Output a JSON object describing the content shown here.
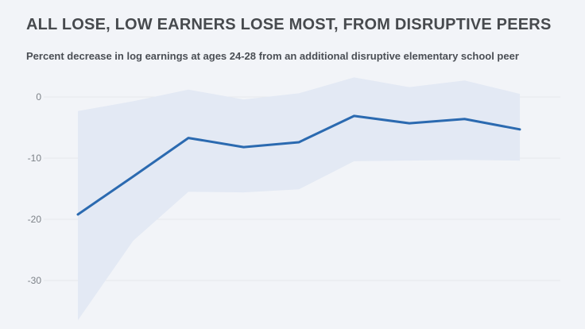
{
  "page": {
    "title": "ALL LOSE, LOW EARNERS LOSE MOST, FROM DISRUPTIVE PEERS",
    "subtitle": "Percent decrease in log earnings at ages 24-28 from an additional disruptive elementary school peer"
  },
  "colors": {
    "background": "#f2f4f8",
    "title": "#474a4e",
    "subtitle": "#4a4e54",
    "line": "#2b6ab0",
    "band": "#e3e9f4",
    "grid": "#e7e9ed",
    "tick_label": "#7c8187"
  },
  "chart_data": {
    "type": "line",
    "title": "ALL LOSE, LOW EARNERS LOSE MOST, FROM DISRUPTIVE PEERS",
    "subtitle": "Percent decrease in log earnings at ages 24-28 from an additional disruptive elementary school peer",
    "xlabel": "",
    "ylabel": "",
    "x": [
      1,
      2,
      3,
      4,
      5,
      6,
      7,
      8,
      9
    ],
    "x_tick_labels_visible": false,
    "series": [
      {
        "name": "Percent decrease in log earnings",
        "values": [
          -19.2,
          -13.0,
          -6.7,
          -8.2,
          -7.4,
          -3.1,
          -4.3,
          -3.6,
          -5.3
        ]
      }
    ],
    "band": {
      "name": "confidence-interval",
      "upper": [
        -2.3,
        -0.7,
        1.2,
        -0.4,
        0.6,
        3.2,
        1.6,
        2.7,
        0.5
      ],
      "lower": [
        -36.5,
        -23.5,
        -15.5,
        -15.6,
        -15.1,
        -10.5,
        -10.4,
        -10.3,
        -10.4
      ]
    },
    "yticks": [
      0,
      -10,
      -20,
      -30
    ],
    "ytick_labels": [
      "0",
      "-10",
      "-20",
      "-30"
    ],
    "ylim": [
      -38,
      4.5
    ],
    "grid": "horizontal",
    "legend": "none"
  }
}
